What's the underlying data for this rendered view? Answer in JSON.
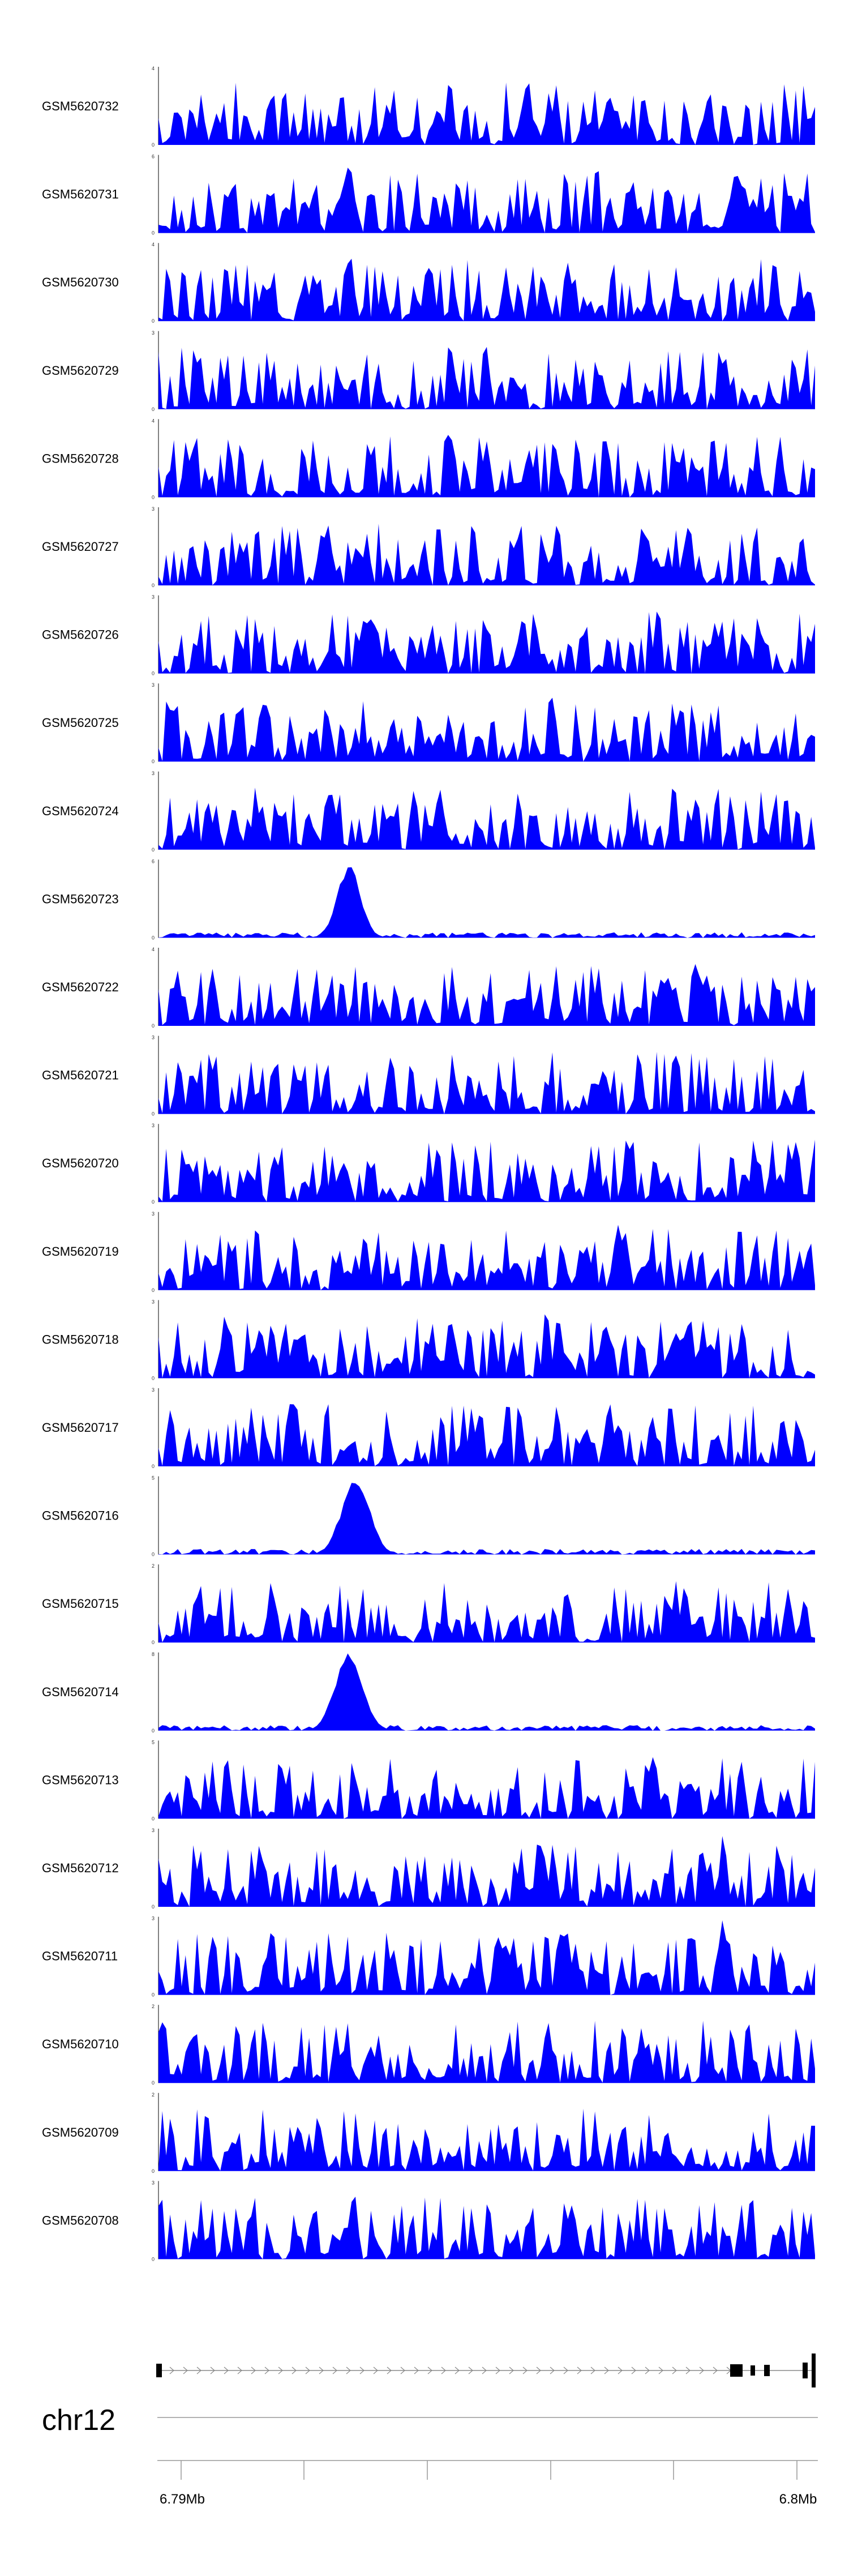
{
  "chart_data": {
    "type": "area",
    "color": "#0000ff",
    "tracks": [
      {
        "name": "GSM5620732",
        "ymax": 4,
        "seed": 732,
        "peaks": []
      },
      {
        "name": "GSM5620731",
        "ymax": 6,
        "seed": 731,
        "peaks": [
          [
            0.29,
            1.0,
            0.006
          ]
        ]
      },
      {
        "name": "GSM5620730",
        "ymax": 4,
        "seed": 730,
        "peaks": []
      },
      {
        "name": "GSM5620729",
        "ymax": 3,
        "seed": 729,
        "peaks": []
      },
      {
        "name": "GSM5620728",
        "ymax": 4,
        "seed": 728,
        "peaks": []
      },
      {
        "name": "GSM5620727",
        "ymax": 3,
        "seed": 727,
        "peaks": []
      },
      {
        "name": "GSM5620726",
        "ymax": 3,
        "seed": 726,
        "peaks": []
      },
      {
        "name": "GSM5620725",
        "ymax": 3,
        "seed": 725,
        "peaks": [
          [
            0.6,
            0.9,
            0.008
          ]
        ]
      },
      {
        "name": "GSM5620724",
        "ymax": 3,
        "seed": 724,
        "peaks": []
      },
      {
        "name": "GSM5620723",
        "ymax": 6,
        "seed": 723,
        "peaks": [
          [
            0.29,
            0.95,
            0.025
          ]
        ],
        "low": true
      },
      {
        "name": "GSM5620722",
        "ymax": 4,
        "seed": 722,
        "peaks": []
      },
      {
        "name": "GSM5620721",
        "ymax": 3,
        "seed": 721,
        "peaks": []
      },
      {
        "name": "GSM5620720",
        "ymax": 3,
        "seed": 720,
        "peaks": []
      },
      {
        "name": "GSM5620719",
        "ymax": 3,
        "seed": 719,
        "peaks": [
          [
            0.7,
            0.95,
            0.01
          ]
        ]
      },
      {
        "name": "GSM5620718",
        "ymax": 3,
        "seed": 718,
        "peaks": [
          [
            0.59,
            1.0,
            0.006
          ]
        ]
      },
      {
        "name": "GSM5620717",
        "ymax": 3,
        "seed": 717,
        "peaks": []
      },
      {
        "name": "GSM5620716",
        "ymax": 5,
        "seed": 716,
        "peaks": [
          [
            0.3,
            1.0,
            0.03
          ]
        ],
        "low": true
      },
      {
        "name": "GSM5620715",
        "ymax": 2,
        "seed": 715,
        "peaks": []
      },
      {
        "name": "GSM5620714",
        "ymax": 8,
        "seed": 714,
        "peaks": [
          [
            0.29,
            1.0,
            0.03
          ]
        ],
        "low": true
      },
      {
        "name": "GSM5620713",
        "ymax": 5,
        "seed": 713,
        "peaks": []
      },
      {
        "name": "GSM5620712",
        "ymax": 3,
        "seed": 712,
        "peaks": [
          [
            0.86,
            0.95,
            0.008
          ]
        ]
      },
      {
        "name": "GSM5620711",
        "ymax": 3,
        "seed": 711,
        "peaks": [
          [
            0.86,
            1.0,
            0.01
          ]
        ]
      },
      {
        "name": "GSM5620710",
        "ymax": 2,
        "seed": 710,
        "peaks": []
      },
      {
        "name": "GSM5620709",
        "ymax": 2,
        "seed": 709,
        "peaks": []
      },
      {
        "name": "GSM5620708",
        "ymax": 3,
        "seed": 708,
        "peaks": []
      }
    ],
    "axis": {
      "chromosome": "chr12",
      "tick_labels": [
        "6.79Mb",
        "6.8Mb"
      ]
    }
  }
}
